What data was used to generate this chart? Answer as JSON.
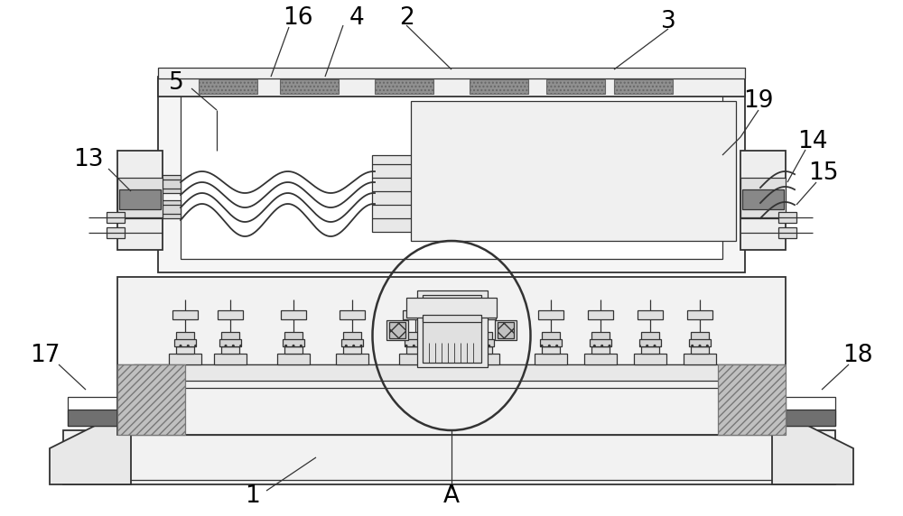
{
  "bg_color": "#ffffff",
  "lc": "#333333",
  "lw": 1.3,
  "lw_thin": 0.9,
  "fs": 19,
  "fc_white": "#ffffff",
  "fc_light": "#f5f5f5",
  "fc_mid": "#e8e8e8",
  "fc_dark": "#c8c8c8",
  "fc_gray": "#888888",
  "fc_hatch": "#aaaaaa",
  "fc_dgray": "#707070"
}
